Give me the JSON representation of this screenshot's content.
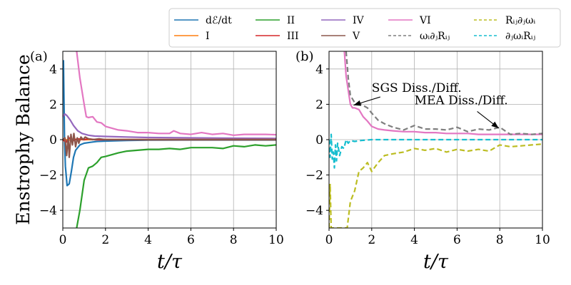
{
  "chart_data": {
    "legend": {
      "placement": "top-right",
      "entries": [
        {
          "label": "dℰ/dt",
          "color": "#1f77b4",
          "style": "solid"
        },
        {
          "label": "I",
          "color": "#ff7f0e",
          "style": "solid"
        },
        {
          "label": "II",
          "color": "#2ca02c",
          "style": "solid"
        },
        {
          "label": "III",
          "color": "#d62728",
          "style": "solid"
        },
        {
          "label": "IV",
          "color": "#9467bd",
          "style": "solid"
        },
        {
          "label": "V",
          "color": "#8c564b",
          "style": "solid"
        },
        {
          "label": "VI",
          "color": "#e377c2",
          "style": "solid"
        },
        {
          "label": "ωᵢ∂ⱼRᵢⱼ",
          "color": "#7f7f7f",
          "style": "dashed"
        },
        {
          "label": "Rᵢⱼ∂ⱼωᵢ",
          "color": "#bcbd22",
          "style": "dashed"
        },
        {
          "label": "∂ⱼωᵢRᵢⱼ",
          "color": "#17becf",
          "style": "dashed"
        }
      ]
    },
    "panels": [
      {
        "panel_label": "(a)",
        "type": "line",
        "xlabel": "t/τ",
        "ylabel": "Enstrophy Balance",
        "xlim": [
          0,
          10
        ],
        "ylim": [
          -5,
          5
        ],
        "xticks": [
          "0",
          "2",
          "4",
          "6",
          "8",
          "10"
        ],
        "yticks": [
          "−4",
          "−2",
          "0",
          "2",
          "4"
        ],
        "ytick_values": [
          -4,
          -2,
          0,
          2,
          4
        ],
        "grid": true,
        "series": [
          {
            "name": "II",
            "color": "#2ca02c",
            "style": "solid",
            "x": [
              0.65,
              0.8,
              1.0,
              1.2,
              1.4,
              1.6,
              1.8,
              2.0,
              2.3,
              2.6,
              3.0,
              3.5,
              4.0,
              4.5,
              5.0,
              5.5,
              6.0,
              6.5,
              7.0,
              7.5,
              8.0,
              8.5,
              9.0,
              9.5,
              10.0
            ],
            "y": [
              -5.0,
              -4.0,
              -2.3,
              -1.6,
              -1.5,
              -1.3,
              -1.0,
              -0.95,
              -0.85,
              -0.75,
              -0.65,
              -0.6,
              -0.55,
              -0.55,
              -0.5,
              -0.55,
              -0.45,
              -0.45,
              -0.45,
              -0.5,
              -0.35,
              -0.4,
              -0.3,
              -0.35,
              -0.3
            ]
          },
          {
            "name": "dℰ/dt",
            "color": "#1f77b4",
            "style": "solid",
            "x": [
              0.03,
              0.08,
              0.12,
              0.2,
              0.3,
              0.4,
              0.5,
              0.6,
              0.8,
              1.0,
              1.3,
              1.6,
              2.0,
              3.0,
              4.0,
              6.0,
              8.0,
              10.0
            ],
            "y": [
              4.5,
              0.0,
              -1.5,
              -2.6,
              -2.5,
              -1.8,
              -1.0,
              -0.6,
              -0.3,
              -0.2,
              -0.15,
              -0.1,
              -0.08,
              -0.05,
              -0.03,
              -0.02,
              -0.02,
              -0.02
            ]
          },
          {
            "name": "IV",
            "color": "#9467bd",
            "style": "solid",
            "x": [
              0.0,
              0.1,
              0.2,
              0.35,
              0.5,
              0.7,
              0.9,
              1.2,
              1.5,
              2.0,
              3.0,
              4.0,
              6.0,
              8.0,
              10.0
            ],
            "y": [
              1.3,
              1.45,
              1.35,
              1.1,
              0.8,
              0.5,
              0.35,
              0.25,
              0.2,
              0.18,
              0.15,
              0.12,
              0.1,
              0.08,
              0.07
            ]
          },
          {
            "name": "VI",
            "color": "#e377c2",
            "style": "solid",
            "x": [
              0.65,
              0.8,
              1.0,
              1.1,
              1.2,
              1.4,
              1.6,
              1.8,
              2.0,
              2.3,
              2.6,
              3.0,
              3.5,
              4.0,
              4.5,
              5.0,
              5.2,
              5.5,
              6.0,
              6.5,
              7.0,
              7.5,
              8.0,
              8.5,
              9.0,
              9.5,
              10.0
            ],
            "y": [
              5.0,
              3.5,
              2.0,
              1.3,
              1.25,
              1.3,
              1.0,
              0.95,
              0.75,
              0.65,
              0.55,
              0.5,
              0.4,
              0.4,
              0.35,
              0.35,
              0.5,
              0.35,
              0.3,
              0.4,
              0.3,
              0.35,
              0.25,
              0.3,
              0.3,
              0.3,
              0.28
            ]
          },
          {
            "name": "I",
            "color": "#ff7f0e",
            "style": "solid",
            "x": [
              0.0,
              0.3,
              0.6,
              1.0,
              2.0,
              4.0,
              6.0,
              8.0,
              10.0
            ],
            "y": [
              0.0,
              -0.02,
              0.02,
              0.0,
              0.01,
              0.0,
              0.0,
              0.0,
              0.0
            ]
          },
          {
            "name": "III",
            "color": "#d62728",
            "style": "solid",
            "x": [
              0.0,
              0.15,
              0.3,
              0.5,
              0.7,
              1.0,
              1.2,
              1.5,
              2.0,
              3.0,
              5.0,
              7.0,
              10.0
            ],
            "y": [
              0.0,
              -0.15,
              0.1,
              -0.05,
              0.05,
              0.0,
              0.05,
              0.0,
              0.0,
              0.0,
              0.0,
              0.0,
              0.0
            ]
          },
          {
            "name": "V",
            "color": "#8c564b",
            "style": "solid",
            "x": [
              0.0,
              0.1,
              0.18,
              0.25,
              0.3,
              0.38,
              0.45,
              0.52,
              0.6,
              0.68,
              0.75,
              0.85,
              0.95,
              1.05,
              1.2,
              1.4,
              1.7,
              2.0,
              3.0,
              4.0,
              6.0,
              8.0,
              10.0
            ],
            "y": [
              0.0,
              0.1,
              -0.9,
              0.2,
              -1.0,
              0.3,
              -0.3,
              0.35,
              -0.4,
              0.1,
              -0.2,
              0.15,
              0.0,
              0.15,
              0.05,
              0.0,
              0.05,
              0.0,
              0.0,
              0.0,
              0.0,
              0.0,
              0.0
            ]
          }
        ]
      },
      {
        "panel_label": "(b)",
        "type": "line",
        "xlabel": "t/τ",
        "ylabel": "",
        "xlim": [
          0,
          10
        ],
        "ylim": [
          -5,
          5
        ],
        "xticks": [
          "0",
          "2",
          "4",
          "6",
          "8",
          "10"
        ],
        "yticks": [
          "−4",
          "−2",
          "0",
          "2",
          "4"
        ],
        "ytick_values": [
          -4,
          -2,
          0,
          2,
          4
        ],
        "grid": true,
        "series": [
          {
            "name": "VI",
            "color": "#e377c2",
            "style": "solid",
            "x": [
              0.72,
              0.8,
              1.0,
              1.1,
              1.2,
              1.4,
              1.6,
              1.8,
              2.0,
              2.3,
              2.6,
              3.0,
              3.5,
              4.0,
              4.5,
              5.0,
              5.5,
              6.0,
              6.5,
              7.0,
              7.5,
              8.0,
              8.5,
              9.0,
              9.5,
              10.0
            ],
            "y": [
              5.0,
              3.6,
              2.0,
              1.8,
              1.8,
              1.7,
              1.3,
              1.05,
              0.75,
              0.6,
              0.55,
              0.5,
              0.45,
              0.45,
              0.4,
              0.4,
              0.35,
              0.35,
              0.35,
              0.3,
              0.3,
              0.3,
              0.3,
              0.3,
              0.3,
              0.3
            ]
          },
          {
            "name": "ωᵢ∂ⱼRᵢⱼ",
            "color": "#7f7f7f",
            "style": "dashed",
            "x": [
              0.8,
              0.9,
              1.0,
              1.2,
              1.5,
              1.8,
              2.0,
              2.3,
              2.6,
              3.0,
              3.5,
              4.0,
              4.5,
              5.0,
              5.5,
              6.0,
              6.5,
              7.0,
              7.5,
              8.0,
              8.5,
              9.0,
              9.5,
              10.0
            ],
            "y": [
              5.0,
              3.5,
              2.5,
              2.1,
              2.0,
              1.8,
              1.5,
              1.1,
              0.9,
              0.7,
              0.55,
              0.8,
              0.6,
              0.6,
              0.55,
              0.7,
              0.45,
              0.6,
              0.55,
              0.7,
              0.3,
              0.35,
              0.3,
              0.35
            ]
          },
          {
            "name": "Rᵢⱼ∂ⱼωᵢ",
            "color": "#bcbd22",
            "style": "dashed",
            "x": [
              0.0,
              0.05,
              0.1,
              0.15,
              0.85,
              1.0,
              1.2,
              1.4,
              1.6,
              1.8,
              2.0,
              2.3,
              2.6,
              3.0,
              3.5,
              4.0,
              4.5,
              5.0,
              5.5,
              6.0,
              6.5,
              7.0,
              7.5,
              8.0,
              8.5,
              9.0,
              9.5,
              10.0
            ],
            "y": [
              -5.0,
              -2.5,
              -5.0,
              -5.0,
              -5.0,
              -3.5,
              -2.9,
              -1.8,
              -1.6,
              -1.3,
              -1.8,
              -1.3,
              -0.9,
              -0.8,
              -0.7,
              -0.5,
              -0.6,
              -0.5,
              -0.7,
              -0.55,
              -0.65,
              -0.55,
              -0.65,
              -0.3,
              -0.4,
              -0.35,
              -0.3,
              -0.25
            ]
          },
          {
            "name": "∂ⱼωᵢRᵢⱼ",
            "color": "#17becf",
            "style": "dashed",
            "x": [
              0.0,
              0.05,
              0.1,
              0.15,
              0.2,
              0.25,
              0.3,
              0.35,
              0.4,
              0.5,
              0.6,
              0.7,
              0.8,
              0.9,
              1.0,
              1.2,
              1.5,
              2.0,
              3.0,
              4.0,
              6.0,
              8.0,
              10.0
            ],
            "y": [
              0.0,
              -1.0,
              0.3,
              -1.1,
              -0.7,
              -1.6,
              -0.3,
              -1.2,
              -0.2,
              -0.9,
              -0.4,
              -0.5,
              0.0,
              -0.2,
              -0.05,
              -0.1,
              -0.05,
              0.0,
              0.0,
              0.0,
              0.0,
              0.0,
              0.0
            ]
          }
        ],
        "annotations": [
          {
            "text": "SGS Diss./Diff.",
            "text_x": 2.0,
            "text_y": 2.7,
            "arrow_to_x": 1.15,
            "arrow_to_y": 1.95
          },
          {
            "text": "MEA Diss./Diff.",
            "text_x": 4.0,
            "text_y": 2.0,
            "arrow_to_x": 7.95,
            "arrow_to_y": 0.65
          }
        ]
      }
    ]
  }
}
